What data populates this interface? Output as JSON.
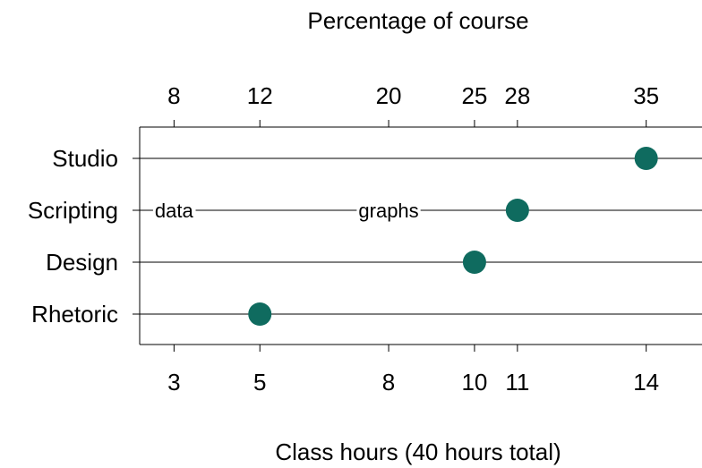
{
  "chart_data": {
    "type": "scatter",
    "title": "Percentage of course",
    "xlabel": "Class hours (40 hours total)",
    "categories": [
      "Studio",
      "Scripting",
      "Design",
      "Rhetoric"
    ],
    "series": [
      {
        "values": [
          14,
          11,
          10,
          5
        ]
      }
    ],
    "bottom_ticks": [
      "3",
      "5",
      "8",
      "10",
      "11",
      "14"
    ],
    "top_ticks": [
      "8",
      "12",
      "20",
      "25",
      "28",
      "35"
    ],
    "annotations": [
      {
        "text": "data",
        "row": "Scripting",
        "x": 3
      },
      {
        "text": "graphs",
        "row": "Scripting",
        "x": 8
      }
    ],
    "xlim": [
      2.2,
      15.3
    ],
    "grid": "horizontal lines at each category",
    "marker_color": "#0f6b5f"
  }
}
